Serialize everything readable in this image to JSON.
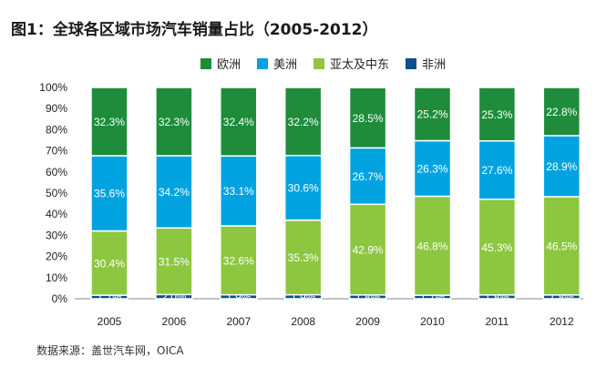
{
  "title": "图1：全球各区域市场汽车销量占比（2005-2012）",
  "source": "数据来源：盖世汽车网，OICA",
  "chart_data": {
    "type": "bar",
    "stacked": true,
    "categories": [
      "2005",
      "2006",
      "2007",
      "2008",
      "2009",
      "2010",
      "2011",
      "2012"
    ],
    "series": [
      {
        "name": "非洲",
        "color": "#0d4f8b",
        "values": [
          1.7,
          2.0,
          1.9,
          1.9,
          1.8,
          1.7,
          1.8,
          1.8
        ],
        "labels": [
          "1.7%",
          "2.0%",
          "1.9%",
          "1.9%",
          "1.8%",
          "1.7%",
          "1.8%",
          "1.8%"
        ]
      },
      {
        "name": "亚太及中东",
        "color": "#8dc63f",
        "values": [
          30.4,
          31.5,
          32.6,
          35.3,
          42.9,
          46.8,
          45.3,
          46.5
        ],
        "labels": [
          "30.4%",
          "31.5%",
          "32.6%",
          "35.3%",
          "42.9%",
          "46.8%",
          "45.3%",
          "46.5%"
        ]
      },
      {
        "name": "美洲",
        "color": "#00a3e0",
        "values": [
          35.6,
          34.2,
          33.1,
          30.6,
          26.7,
          26.3,
          27.6,
          28.9
        ],
        "labels": [
          "35.6%",
          "34.2%",
          "33.1%",
          "30.6%",
          "26.7%",
          "26.3%",
          "27.6%",
          "28.9%"
        ]
      },
      {
        "name": "欧洲",
        "color": "#1e8c3a",
        "values": [
          32.3,
          32.3,
          32.4,
          32.2,
          28.5,
          25.2,
          25.3,
          22.8
        ],
        "labels": [
          "32.3%",
          "32.3%",
          "32.4%",
          "32.2%",
          "28.5%",
          "25.2%",
          "25.3%",
          "22.8%"
        ]
      }
    ],
    "legend_order": [
      "欧洲",
      "美洲",
      "亚太及中东",
      "非洲"
    ],
    "legend_position": "top",
    "ylim": [
      0,
      100
    ],
    "yticks": [
      "0%",
      "10%",
      "20%",
      "30%",
      "40%",
      "50%",
      "60%",
      "70%",
      "80%",
      "90%",
      "100%"
    ],
    "grid": false
  }
}
